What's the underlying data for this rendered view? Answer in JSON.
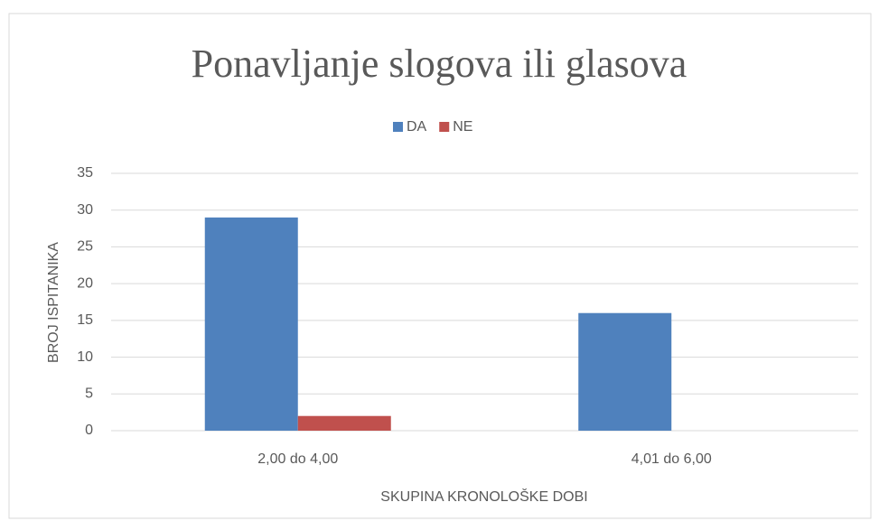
{
  "chart_data": {
    "type": "bar",
    "title": "Ponavljanje slogova ili glasova",
    "categories": [
      "2,00 do 4,00",
      "4,01 do 6,00"
    ],
    "series": [
      {
        "name": "DA",
        "color": "#4f81bd",
        "values": [
          29,
          16
        ]
      },
      {
        "name": "NE",
        "color": "#c0504d",
        "values": [
          2,
          0
        ]
      }
    ],
    "xlabel": "SKUPINA KRONOLOŠKE DOBI",
    "ylabel": "BROJ ISPITANIKA",
    "ylim": [
      0,
      35
    ],
    "yticks": [
      0,
      5,
      10,
      15,
      20,
      25,
      30,
      35
    ],
    "grid": true,
    "legend": "top"
  }
}
